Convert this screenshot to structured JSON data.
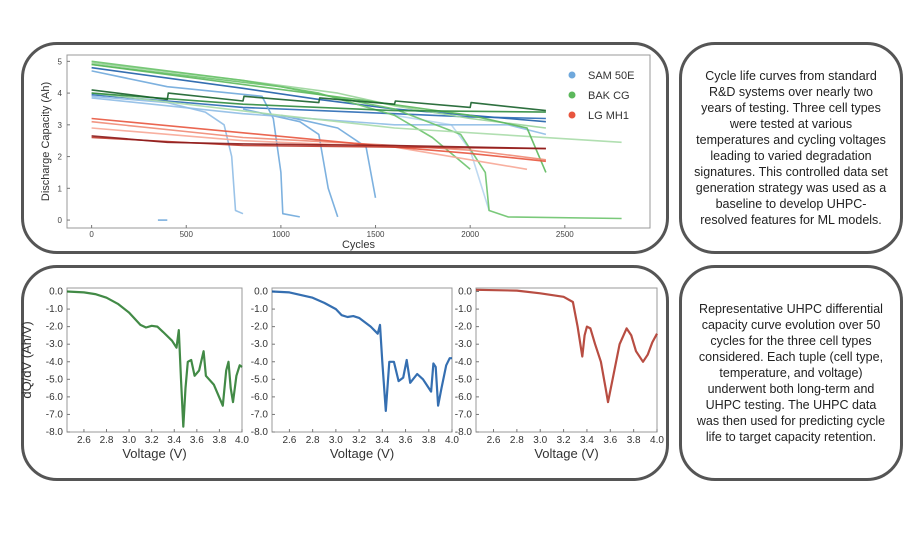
{
  "captions": {
    "top": "Cycle life curves from standard R&D systems over nearly two years of testing. Three cell types were tested at various temperatures and cycling voltages leading to varied degradation signatures. This controlled data set generation strategy was used as a baseline to develop UHPC-resolved features for ML models.",
    "bottom": "Representative UHPC differential capacity curve evolution over 50 cycles for the three cell types considered. Each tuple (cell type, temperature, and voltage) underwent both long-term and UHPC testing. The UHPC data was then used for predicting cycle life to target capacity retention."
  },
  "chart_data": [
    {
      "type": "line",
      "title": "",
      "xlabel": "Cycles",
      "ylabel": "Discharge Capacity (Ah)",
      "xlim": [
        -130,
        2950
      ],
      "ylim": [
        -0.25,
        5.2
      ],
      "xticks": [
        "0",
        "500",
        "1000",
        "1500",
        "2000",
        "2500"
      ],
      "xtick_values": [
        0,
        500,
        1000,
        1500,
        2000,
        2500
      ],
      "yticks": [
        "0",
        "1",
        "2",
        "3",
        "4",
        "5"
      ],
      "ytick_values": [
        0,
        1,
        2,
        3,
        4,
        5
      ],
      "legend_placement": "top-right",
      "legend": [
        {
          "name": "SAM 50E",
          "color": "#6fa8dc"
        },
        {
          "name": "BAK CG",
          "color": "#5cb85c"
        },
        {
          "name": "LG MH1",
          "color": "#e8553e"
        }
      ],
      "series": [
        {
          "name": "SAM 50E",
          "color": "#1f5fa8",
          "points": [
            [
              0,
              4.8
            ],
            [
              800,
              4.15
            ],
            [
              1200,
              3.8
            ],
            [
              1600,
              3.5
            ],
            [
              2000,
              3.3
            ],
            [
              2400,
              3.1
            ]
          ]
        },
        {
          "name": "SAM 50E",
          "color": "#2a6ab5",
          "points": [
            [
              0,
              3.95
            ],
            [
              400,
              3.75
            ],
            [
              800,
              3.55
            ],
            [
              1200,
              3.45
            ],
            [
              1600,
              3.35
            ],
            [
              2000,
              3.25
            ],
            [
              2400,
              3.2
            ]
          ]
        },
        {
          "name": "SAM 50E",
          "color": "#8fbde6",
          "points": [
            [
              0,
              3.9
            ],
            [
              400,
              3.7
            ],
            [
              600,
              3.4
            ],
            [
              700,
              3.0
            ],
            [
              740,
              2.0
            ],
            [
              760,
              0.3
            ],
            [
              800,
              0.2
            ]
          ]
        },
        {
          "name": "SAM 50E",
          "color": "#6fa8dc",
          "points": [
            [
              0,
              4.7
            ],
            [
              400,
              4.2
            ],
            [
              900,
              3.9
            ],
            [
              960,
              3.2
            ],
            [
              1000,
              1.5
            ],
            [
              1010,
              0.2
            ],
            [
              1100,
              0.1
            ]
          ]
        },
        {
          "name": "SAM 50E",
          "color": "#6fa8dc",
          "points": [
            [
              800,
              3.5
            ],
            [
              1100,
              3.1
            ],
            [
              1200,
              2.7
            ],
            [
              1250,
              1.0
            ],
            [
              1300,
              0.1
            ]
          ]
        },
        {
          "name": "SAM 50E",
          "color": "#6fa8dc",
          "points": [
            [
              1000,
              3.3
            ],
            [
              1300,
              2.9
            ],
            [
              1450,
              2.3
            ],
            [
              1500,
              0.7
            ]
          ]
        },
        {
          "name": "SAM 50E",
          "color": "#b7d5ef",
          "points": [
            [
              1600,
              3.3
            ],
            [
              1900,
              3.0
            ],
            [
              2000,
              2.2
            ],
            [
              2100,
              0.3
            ]
          ]
        },
        {
          "name": "SAM 50E",
          "color": "#8fbde6",
          "points": [
            [
              0,
              3.85
            ],
            [
              800,
              3.35
            ],
            [
              1600,
              3.0
            ],
            [
              2200,
              3.0
            ],
            [
              2400,
              2.7
            ]
          ]
        },
        {
          "name": "SAM 50E",
          "color": "#6fa8dc",
          "points": [
            [
              350,
              0
            ],
            [
              400,
              0
            ]
          ]
        },
        {
          "name": "BAK CG",
          "color": "#9ad49a",
          "points": [
            [
              0,
              4.95
            ],
            [
              800,
              4.4
            ],
            [
              1300,
              4.0
            ],
            [
              1600,
              3.6
            ],
            [
              2000,
              3.2
            ],
            [
              2400,
              2.9
            ]
          ]
        },
        {
          "name": "BAK CG",
          "color": "#6cc36c",
          "points": [
            [
              0,
              5.0
            ],
            [
              800,
              4.4
            ],
            [
              1200,
              4.0
            ],
            [
              1600,
              3.3
            ],
            [
              1800,
              2.6
            ],
            [
              2000,
              1.6
            ]
          ]
        },
        {
          "name": "BAK CG",
          "color": "#6cc36c",
          "points": [
            [
              0,
              4.9
            ],
            [
              1000,
              4.2
            ],
            [
              1600,
              3.5
            ],
            [
              1950,
              2.7
            ],
            [
              2080,
              1.5
            ],
            [
              2100,
              0.3
            ],
            [
              2200,
              0.1
            ],
            [
              2800,
              0.05
            ]
          ]
        },
        {
          "name": "BAK CG",
          "color": "#a8dba8",
          "points": [
            [
              0,
              4.0
            ],
            [
              1000,
              3.3
            ],
            [
              1600,
              2.9
            ],
            [
              2800,
              2.45
            ]
          ]
        },
        {
          "name": "BAK CG",
          "color": "#5cb85c",
          "points": [
            [
              0,
              4.9
            ],
            [
              1400,
              3.8
            ],
            [
              2000,
              3.3
            ],
            [
              2300,
              2.9
            ],
            [
              2400,
              1.5
            ]
          ]
        },
        {
          "name": "BAK CG",
          "color": "#2e8b3e",
          "points": [
            [
              0,
              4.0
            ],
            [
              800,
              3.65
            ],
            [
              1600,
              3.45
            ],
            [
              2400,
              3.4
            ]
          ]
        },
        {
          "name": "BAK CG",
          "color": "#17602a",
          "points": [
            [
              0,
              4.1
            ],
            [
              400,
              3.8
            ],
            [
              405,
              4.0
            ],
            [
              800,
              3.75
            ],
            [
              805,
              3.9
            ],
            [
              1200,
              3.7
            ],
            [
              1205,
              3.85
            ],
            [
              1600,
              3.65
            ],
            [
              1605,
              3.75
            ],
            [
              2000,
              3.55
            ],
            [
              2005,
              3.7
            ],
            [
              2400,
              3.45
            ]
          ]
        },
        {
          "name": "LG MH1",
          "color": "#f7a796",
          "points": [
            [
              0,
              2.9
            ],
            [
              800,
              2.5
            ],
            [
              1600,
              2.3
            ],
            [
              2300,
              1.6
            ]
          ]
        },
        {
          "name": "LG MH1",
          "color": "#f08a74",
          "points": [
            [
              0,
              3.1
            ],
            [
              800,
              2.6
            ],
            [
              1600,
              2.35
            ],
            [
              2000,
              2.2
            ],
            [
              2400,
              1.9
            ]
          ]
        },
        {
          "name": "LG MH1",
          "color": "#e8553e",
          "points": [
            [
              0,
              3.2
            ],
            [
              800,
              2.75
            ],
            [
              1600,
              2.3
            ],
            [
              2000,
              2.1
            ],
            [
              2400,
              1.85
            ]
          ]
        },
        {
          "name": "LG MH1",
          "color": "#c0392b",
          "points": [
            [
              0,
              2.6
            ],
            [
              800,
              2.35
            ],
            [
              1600,
              2.3
            ],
            [
              2400,
              2.25
            ]
          ]
        },
        {
          "name": "LG MH1",
          "color": "#8b1a1a",
          "points": [
            [
              0,
              2.65
            ],
            [
              400,
              2.45
            ],
            [
              800,
              2.4
            ],
            [
              1600,
              2.35
            ],
            [
              2400,
              2.25
            ]
          ]
        }
      ]
    },
    {
      "type": "line",
      "title": "",
      "xlabel": "Voltage (V)",
      "ylabel": "dQ/dV (Ah/V)",
      "xlim": [
        2.45,
        4.0
      ],
      "ylim": [
        -8.0,
        0.2
      ],
      "xticks": [
        "2.6",
        "2.8",
        "3.0",
        "3.2",
        "3.4",
        "3.6",
        "3.8",
        "4.0"
      ],
      "yticks": [
        "0.0",
        "-1.0",
        "-2.0",
        "-3.0",
        "-4.0",
        "-5.0",
        "-6.0",
        "-7.0",
        "-8.0"
      ],
      "series": [
        {
          "name": "BAK CG",
          "color": "#2e7d32",
          "points": [
            [
              2.45,
              0
            ],
            [
              2.6,
              -0.05
            ],
            [
              2.7,
              -0.15
            ],
            [
              2.8,
              -0.35
            ],
            [
              2.9,
              -0.7
            ],
            [
              3.0,
              -1.2
            ],
            [
              3.1,
              -1.9
            ],
            [
              3.15,
              -2.05
            ],
            [
              3.2,
              -1.95
            ],
            [
              3.25,
              -2.0
            ],
            [
              3.3,
              -2.3
            ],
            [
              3.38,
              -2.8
            ],
            [
              3.42,
              -3.2
            ],
            [
              3.44,
              -2.2
            ],
            [
              3.46,
              -5
            ],
            [
              3.48,
              -7.7
            ],
            [
              3.5,
              -5.5
            ],
            [
              3.52,
              -4
            ],
            [
              3.55,
              -3.9
            ],
            [
              3.58,
              -4.8
            ],
            [
              3.62,
              -4.5
            ],
            [
              3.66,
              -3.4
            ],
            [
              3.68,
              -4.8
            ],
            [
              3.75,
              -5.3
            ],
            [
              3.83,
              -6.5
            ],
            [
              3.86,
              -4.5
            ],
            [
              3.88,
              -4
            ],
            [
              3.9,
              -5.5
            ],
            [
              3.92,
              -6.3
            ],
            [
              3.95,
              -4.8
            ],
            [
              3.98,
              -4.2
            ],
            [
              4.0,
              -4.3
            ]
          ]
        }
      ]
    },
    {
      "type": "line",
      "title": "",
      "xlabel": "Voltage (V)",
      "ylabel": "",
      "xlim": [
        2.45,
        4.0
      ],
      "ylim": [
        -8.0,
        0.2
      ],
      "xticks": [
        "2.6",
        "2.8",
        "3.0",
        "3.2",
        "3.4",
        "3.6",
        "3.8",
        "4.0"
      ],
      "yticks": [
        "0.0",
        "-1.0",
        "-2.0",
        "-3.0",
        "-4.0",
        "-5.0",
        "-6.0",
        "-7.0",
        "-8.0"
      ],
      "series": [
        {
          "name": "SAM 50E",
          "color": "#1f5fa8",
          "points": [
            [
              2.45,
              0
            ],
            [
              2.6,
              -0.05
            ],
            [
              2.8,
              -0.35
            ],
            [
              2.9,
              -0.65
            ],
            [
              3.0,
              -1.0
            ],
            [
              3.05,
              -1.35
            ],
            [
              3.1,
              -1.45
            ],
            [
              3.15,
              -1.4
            ],
            [
              3.2,
              -1.5
            ],
            [
              3.3,
              -2.0
            ],
            [
              3.36,
              -2.4
            ],
            [
              3.38,
              -1.9
            ],
            [
              3.4,
              -4
            ],
            [
              3.43,
              -6.8
            ],
            [
              3.46,
              -4
            ],
            [
              3.5,
              -4
            ],
            [
              3.54,
              -5.1
            ],
            [
              3.58,
              -4.9
            ],
            [
              3.61,
              -3.9
            ],
            [
              3.64,
              -5.2
            ],
            [
              3.7,
              -4.7
            ],
            [
              3.75,
              -5
            ],
            [
              3.82,
              -5.7
            ],
            [
              3.84,
              -4.1
            ],
            [
              3.86,
              -4.3
            ],
            [
              3.88,
              -6.5
            ],
            [
              3.91,
              -5.5
            ],
            [
              3.95,
              -4.2
            ],
            [
              3.98,
              -3.8
            ],
            [
              4.0,
              -3.8
            ]
          ]
        }
      ]
    },
    {
      "type": "line",
      "title": "",
      "xlabel": "Voltage (V)",
      "ylabel": "",
      "xlim": [
        2.45,
        4.0
      ],
      "ylim": [
        -8.0,
        0.2
      ],
      "xticks": [
        "2.6",
        "2.8",
        "3.0",
        "3.2",
        "3.4",
        "3.6",
        "3.8",
        "4.0"
      ],
      "yticks": [
        "0.0",
        "-1.0",
        "-2.0",
        "-3.0",
        "-4.0",
        "-5.0",
        "-6.0",
        "-7.0",
        "-8.0"
      ],
      "series": [
        {
          "name": "LG MH1",
          "color": "#b03a2e",
          "points": [
            [
              2.45,
              0.1
            ],
            [
              2.8,
              0.05
            ],
            [
              3.0,
              -0.1
            ],
            [
              3.2,
              -0.3
            ],
            [
              3.28,
              -0.6
            ],
            [
              3.32,
              -2
            ],
            [
              3.36,
              -3.7
            ],
            [
              3.38,
              -2.5
            ],
            [
              3.4,
              -2
            ],
            [
              3.43,
              -2.1
            ],
            [
              3.47,
              -3
            ],
            [
              3.52,
              -4
            ],
            [
              3.56,
              -5.5
            ],
            [
              3.58,
              -6.3
            ],
            [
              3.62,
              -5
            ],
            [
              3.68,
              -3
            ],
            [
              3.74,
              -2.1
            ],
            [
              3.78,
              -2.5
            ],
            [
              3.82,
              -3.4
            ],
            [
              3.88,
              -4
            ],
            [
              3.92,
              -3.6
            ],
            [
              3.96,
              -2.9
            ],
            [
              4.0,
              -2.4
            ]
          ]
        }
      ]
    }
  ]
}
